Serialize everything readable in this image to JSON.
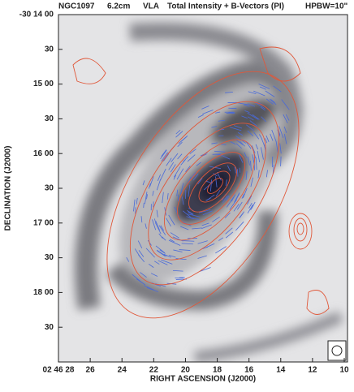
{
  "header": {
    "object": "NGC1097",
    "wavelength": "6.2cm",
    "instrument": "VLA",
    "description": "Total Intensity + B-Vectors (PI)",
    "beam": "HPBW=10\""
  },
  "y_axis": {
    "label": "DECLINATION (J2000)",
    "ticks": [
      "-30 14 00",
      "30",
      "15 00",
      "30",
      "16 00",
      "30",
      "17 00",
      "30",
      "18 00",
      "30"
    ]
  },
  "x_axis": {
    "label": "RIGHT ASCENSION (J2000)",
    "ticks": [
      "02 46 28",
      "26",
      "24",
      "22",
      "20",
      "18",
      "16",
      "14",
      "12",
      "10"
    ]
  }
}
